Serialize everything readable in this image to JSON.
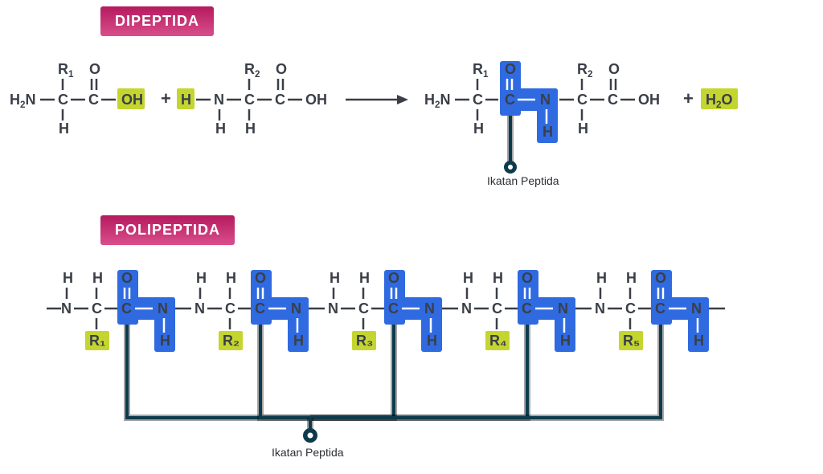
{
  "titles": {
    "dipeptida": "DIPEPTIDA",
    "polipeptida": "POLIPEPTIDA"
  },
  "colors": {
    "badge_gradient_start": "#b51a5d",
    "badge_gradient_end": "#d94e8c",
    "atom_text": "#3a3f47",
    "highlight_yellow": "#c5d52f",
    "highlight_blue": "#2f6ae0",
    "pointer": "#0d3b4d",
    "label": "#2b2f35",
    "white": "#ffffff"
  },
  "labels": {
    "ikatan_peptida": "Ikatan Peptida"
  },
  "atoms": {
    "H": "H",
    "N": "N",
    "C": "C",
    "O": "O",
    "H2N": "H₂N",
    "OH": "OH",
    "H2O": "H₂O",
    "R1": "R₁",
    "R2": "R₂",
    "R3": "R₃",
    "R4": "R₄",
    "R5": "R₅",
    "plus": "+",
    "arrow": "⟶"
  },
  "diagram": {
    "type": "chemistry-structure",
    "font_size_main": 18,
    "font_size_title": 18,
    "font_size_label": 14,
    "bond_length": 18,
    "double_bond_gap": 4,
    "highlight_radius": 3
  }
}
